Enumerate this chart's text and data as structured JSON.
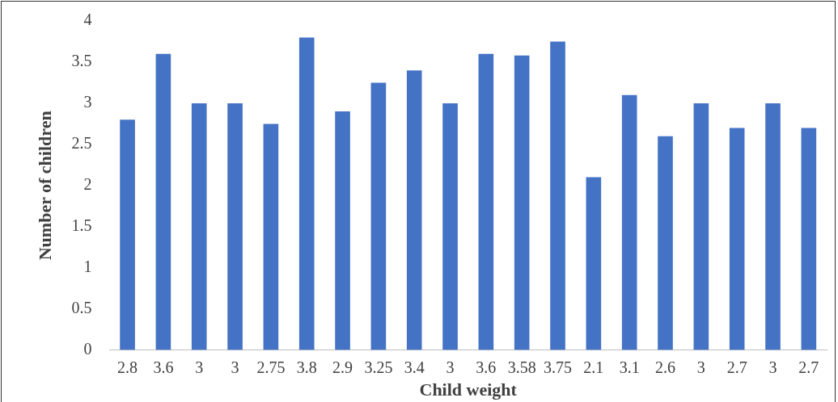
{
  "chart_data": {
    "type": "bar",
    "xlabel": "Child weight",
    "ylabel": "Number of children",
    "categories": [
      "2.8",
      "3.6",
      "3",
      "3",
      "2.75",
      "3.8",
      "2.9",
      "3.25",
      "3.4",
      "3",
      "3.6",
      "3.58",
      "3.75",
      "2.1",
      "3.1",
      "2.6",
      "3",
      "2.7",
      "3",
      "2.7"
    ],
    "values": [
      2.8,
      3.6,
      3,
      3,
      2.75,
      3.8,
      2.9,
      3.25,
      3.4,
      3,
      3.6,
      3.58,
      3.75,
      2.1,
      3.1,
      2.6,
      3,
      2.7,
      3,
      2.7
    ],
    "color": "#4472c4",
    "ylim": [
      0,
      4
    ],
    "yticks": [
      0,
      0.5,
      1,
      1.5,
      2,
      2.5,
      3,
      3.5,
      4
    ],
    "grid": false,
    "legend": false
  }
}
